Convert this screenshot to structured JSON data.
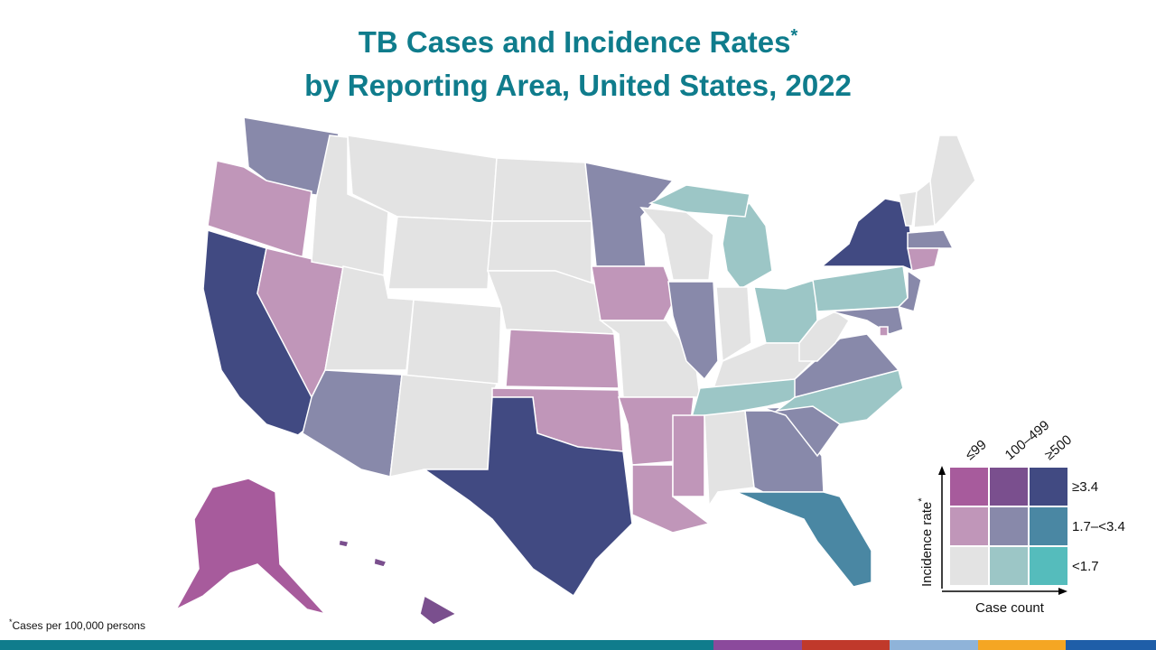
{
  "title": [
    "TB Cases and Incidence Rates",
    "by Reporting Area, United States, 2022"
  ],
  "title_mark": "*",
  "footnote": {
    "mark": "*",
    "text": "Cases per 100,000  persons"
  },
  "legend": {
    "y_label": "Incidence rate",
    "y_label_mark": "*",
    "x_label": "Case count",
    "columns": [
      "≤99",
      "100–499",
      "≥500"
    ],
    "rows": [
      "≥3.4",
      "1.7–<3.4",
      "<1.7"
    ],
    "colors": [
      [
        "#a75b9c",
        "#7a4f8e",
        "#414a82"
      ],
      [
        "#c096b9",
        "#8889aa",
        "#4a87a3"
      ],
      [
        "#e3e3e3",
        "#9cc6c6",
        "#55bcbc"
      ]
    ]
  },
  "areas": [
    {
      "color": "#8889aa"
    },
    {
      "color": "#c096b9"
    },
    {
      "color": "#414a82"
    },
    {
      "color": "#c096b9"
    },
    {
      "color": "#e3e3e3"
    },
    {
      "color": "#e3e3e3"
    },
    {
      "color": "#e3e3e3"
    },
    {
      "color": "#e3e3e3"
    },
    {
      "color": "#e3e3e3"
    },
    {
      "color": "#8889aa"
    },
    {
      "color": "#e3e3e3"
    },
    {
      "color": "#e3e3e3"
    },
    {
      "color": "#e3e3e3"
    },
    {
      "color": "#e3e3e3"
    },
    {
      "color": "#c096b9"
    },
    {
      "color": "#c096b9"
    },
    {
      "color": "#414a82"
    },
    {
      "color": "#8889aa"
    },
    {
      "color": "#c096b9"
    },
    {
      "color": "#e3e3e3"
    },
    {
      "color": "#c096b9"
    },
    {
      "color": "#c096b9"
    },
    {
      "color": "#e3e3e3"
    },
    {
      "color": "#8889aa"
    },
    {
      "color": "#9cc6c6"
    },
    {
      "color": "#9cc6c6"
    },
    {
      "color": "#e3e3e3"
    },
    {
      "color": "#9cc6c6"
    },
    {
      "color": "#e3e3e3"
    },
    {
      "color": "#9cc6c6"
    },
    {
      "color": "#c096b9"
    },
    {
      "color": "#e3e3e3"
    },
    {
      "color": "#8889aa"
    },
    {
      "color": "#4a87a3"
    },
    {
      "color": "#8889aa"
    },
    {
      "color": "#9cc6c6"
    },
    {
      "color": "#8889aa"
    },
    {
      "color": "#e3e3e3"
    },
    {
      "color": "#9cc6c6"
    },
    {
      "color": "#414a82"
    },
    {
      "color": "#8889aa"
    },
    {
      "color": "#8889aa"
    },
    {
      "color": "#e3e3e3"
    },
    {
      "color": "#e3e3e3"
    },
    {
      "color": "#e3e3e3"
    },
    {
      "color": "#8889aa"
    },
    {
      "color": "#c096b9"
    },
    {
      "color": "#a75b9c"
    },
    {
      "color": "#7a4f8e"
    },
    {
      "color": "#7a4f8e"
    },
    {
      "color": "#7a4f8e"
    },
    {
      "color": "#c096b9"
    }
  ]
}
